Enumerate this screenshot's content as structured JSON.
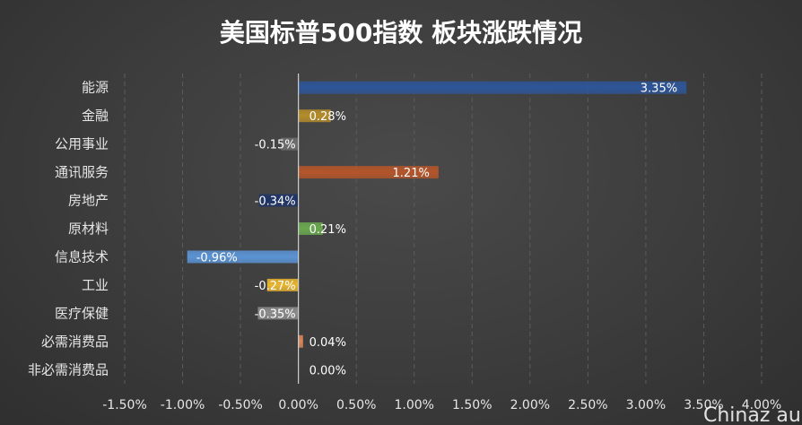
{
  "watermark": "Chinaz au",
  "chart_data": {
    "type": "bar",
    "orientation": "horizontal",
    "title": "美国标普500指数 板块涨跌情况",
    "categories": [
      "能源",
      "金融",
      "公用事业",
      "通讯服务",
      "房地产",
      "原材料",
      "信息技术",
      "工业",
      "医疗保健",
      "必需消费品",
      "非必需消费品"
    ],
    "values": [
      3.35,
      0.28,
      -0.15,
      1.21,
      -0.34,
      0.21,
      -0.96,
      -0.27,
      -0.35,
      0.04,
      0.0
    ],
    "value_labels": [
      "3.35%",
      "0.28%",
      "-0.15%",
      "1.21%",
      "-0.34%",
      "0.21%",
      "-0.96%",
      "-0.27%",
      "-0.35%",
      "0.04%",
      "0.00%"
    ],
    "colors": [
      "#2e5597",
      "#b58c2a",
      "#6e6e6e",
      "#b4552a",
      "#1f3466",
      "#6aa84f",
      "#5b93d3",
      "#e8b530",
      "#8c8c8c",
      "#d9865a",
      "#8c8c8c"
    ],
    "xlim": [
      -1.5,
      4.0
    ],
    "x_ticks": [
      -1.5,
      -1.0,
      -0.5,
      0.0,
      0.5,
      1.0,
      1.5,
      2.0,
      2.5,
      3.0,
      3.5,
      4.0
    ],
    "x_tick_labels": [
      "-1.50%",
      "-1.00%",
      "-0.50%",
      "0.00%",
      "0.50%",
      "1.00%",
      "1.50%",
      "2.00%",
      "2.50%",
      "3.00%",
      "3.50%",
      "4.00%"
    ],
    "grid": true,
    "legend": "none"
  }
}
